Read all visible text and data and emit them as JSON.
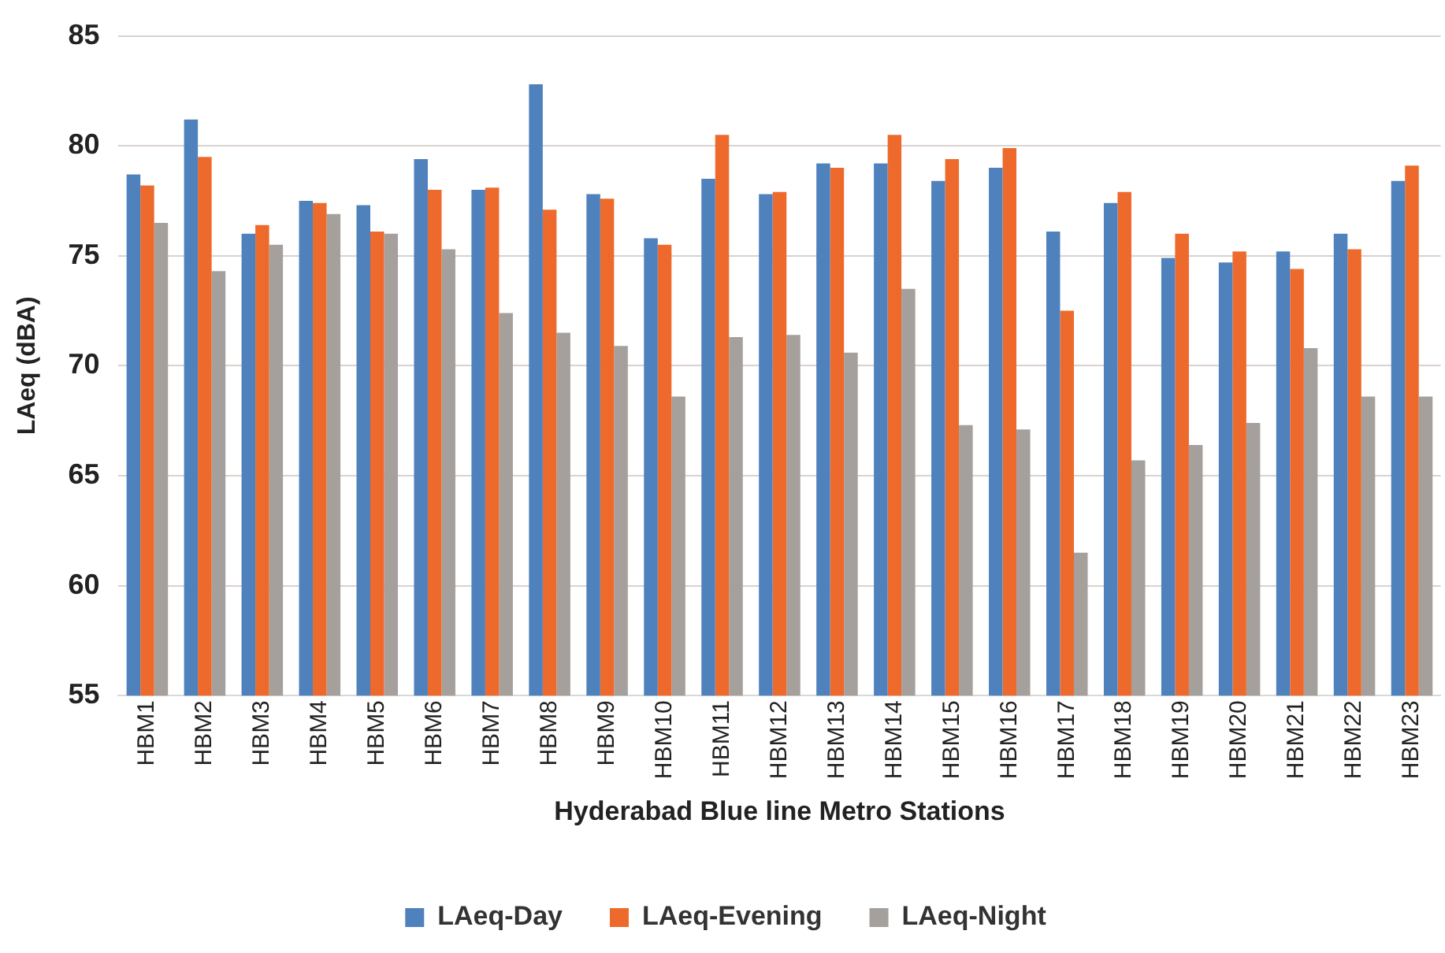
{
  "chart_data": {
    "type": "bar",
    "xlabel": "Hyderabad Blue line Metro Stations",
    "ylabel": "LAeq (dBA)",
    "categories": [
      "HBM1",
      "HBM2",
      "HBM3",
      "HBM4",
      "HBM5",
      "HBM6",
      "HBM7",
      "HBM8",
      "HBM9",
      "HBM10",
      "HBM11",
      "HBM12",
      "HBM13",
      "HBM14",
      "HBM15",
      "HBM16",
      "HBM17",
      "HBM18",
      "HBM19",
      "HBM20",
      "HBM21",
      "HBM22",
      "HBM23"
    ],
    "series": [
      {
        "name": "LAeq-Day",
        "color": "#4f81bd",
        "values": [
          78.7,
          81.2,
          76.0,
          77.5,
          77.3,
          79.4,
          78.0,
          82.8,
          77.8,
          75.8,
          78.5,
          77.8,
          79.2,
          79.2,
          78.4,
          79.0,
          76.1,
          77.4,
          74.9,
          74.7,
          75.2,
          76.0,
          78.4
        ]
      },
      {
        "name": "LAeq-Evening",
        "color": "#ed6a2c",
        "values": [
          78.2,
          79.5,
          76.4,
          77.4,
          76.1,
          78.0,
          78.1,
          77.1,
          77.6,
          75.5,
          80.5,
          77.9,
          79.0,
          80.5,
          79.4,
          79.9,
          72.5,
          77.9,
          76.0,
          75.2,
          74.4,
          75.3,
          79.1
        ]
      },
      {
        "name": "LAeq-Night",
        "color": "#a5a09c",
        "values": [
          76.5,
          74.3,
          75.5,
          76.9,
          76.0,
          75.3,
          72.4,
          71.5,
          70.9,
          68.6,
          71.3,
          71.4,
          70.6,
          73.5,
          67.3,
          67.1,
          61.5,
          65.7,
          66.4,
          67.4,
          70.8,
          68.6,
          68.6
        ]
      }
    ],
    "ylim": [
      55,
      85
    ],
    "yticks": [
      55,
      60,
      65,
      70,
      75,
      80,
      85
    ],
    "grid": "y",
    "legend": "bottom"
  }
}
